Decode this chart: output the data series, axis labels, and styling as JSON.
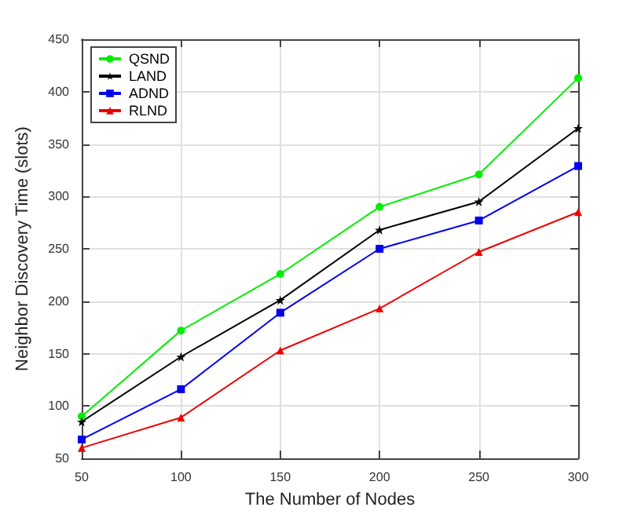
{
  "chart_data": {
    "type": "line",
    "xlabel": "The Number of Nodes",
    "ylabel": "Neighbor Discovery Time (slots)",
    "x": [
      50,
      100,
      150,
      200,
      250,
      300
    ],
    "series": [
      {
        "name": "QSND",
        "color": "#00ee00",
        "marker": "circle",
        "values": [
          90,
          172,
          226,
          290,
          321,
          413
        ]
      },
      {
        "name": "LAND",
        "color": "#000000",
        "marker": "star",
        "values": [
          85,
          147,
          201,
          268,
          295,
          365
        ]
      },
      {
        "name": "ADND",
        "color": "#0000ee",
        "marker": "square",
        "values": [
          68,
          116,
          189,
          250,
          277,
          329
        ]
      },
      {
        "name": "RLND",
        "color": "#ee0000",
        "marker": "triangle",
        "values": [
          60,
          89,
          153,
          193,
          247,
          285
        ]
      }
    ],
    "xlim": [
      50,
      300
    ],
    "xticks": [
      50,
      100,
      150,
      200,
      250,
      300
    ],
    "ylim": [
      50,
      450
    ],
    "yticks": [
      50,
      100,
      150,
      200,
      250,
      300,
      350,
      400,
      450
    ],
    "grid": true,
    "legend": "top left",
    "line_style": "solid"
  }
}
